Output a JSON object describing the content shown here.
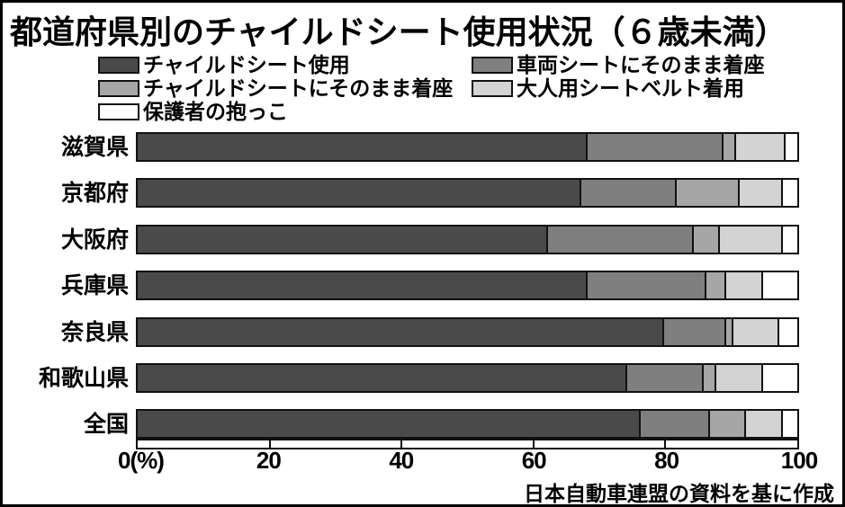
{
  "source_note": "日本自動車連盟の資料を基に作成",
  "chart_data": {
    "type": "bar",
    "orientation": "horizontal_stacked",
    "title": "都道府県別のチャイルドシート使用状況（６歳未満）",
    "unit": "%",
    "grid": false,
    "legend_position": "top-two-columns",
    "categories": [
      "滋賀県",
      "京都府",
      "大阪府",
      "兵庫県",
      "奈良県",
      "和歌山県",
      "全国"
    ],
    "series": [
      {
        "name": "チャイルドシート使用",
        "color": "#4a4a4a",
        "values": [
          68,
          67,
          62,
          68,
          79.5,
          74,
          76
        ]
      },
      {
        "name": "車両シートにそのまま着座",
        "color": "#7f7f7f",
        "values": [
          20.5,
          14.5,
          22,
          18,
          9.5,
          11.5,
          10.5
        ]
      },
      {
        "name": "チャイルドシートにそのまま着座",
        "color": "#a6a6a6",
        "values": [
          2,
          9.5,
          4,
          3,
          1,
          2,
          5.5
        ]
      },
      {
        "name": "大人用シートベルト着用",
        "color": "#d3d3d3",
        "values": [
          7.5,
          6.5,
          9.5,
          5.5,
          7,
          7,
          5.5
        ]
      },
      {
        "name": "保護者の抱っこ",
        "color": "#ffffff",
        "values": [
          2,
          2.5,
          2.5,
          5.5,
          3,
          5.5,
          2.5
        ]
      }
    ],
    "legend_columns": [
      [
        0,
        2,
        4
      ],
      [
        1,
        3
      ]
    ],
    "x_axis": {
      "range": [
        0,
        100
      ],
      "ticks": [
        0,
        20,
        40,
        60,
        80,
        100
      ],
      "tick_labels": [
        "0(%)",
        "20",
        "40",
        "60",
        "80",
        "100"
      ],
      "inner_ticks": [
        20,
        40,
        60,
        80
      ]
    },
    "colors": {
      "outline": "#111111",
      "background": "#ffffff",
      "text": "#000000"
    }
  }
}
